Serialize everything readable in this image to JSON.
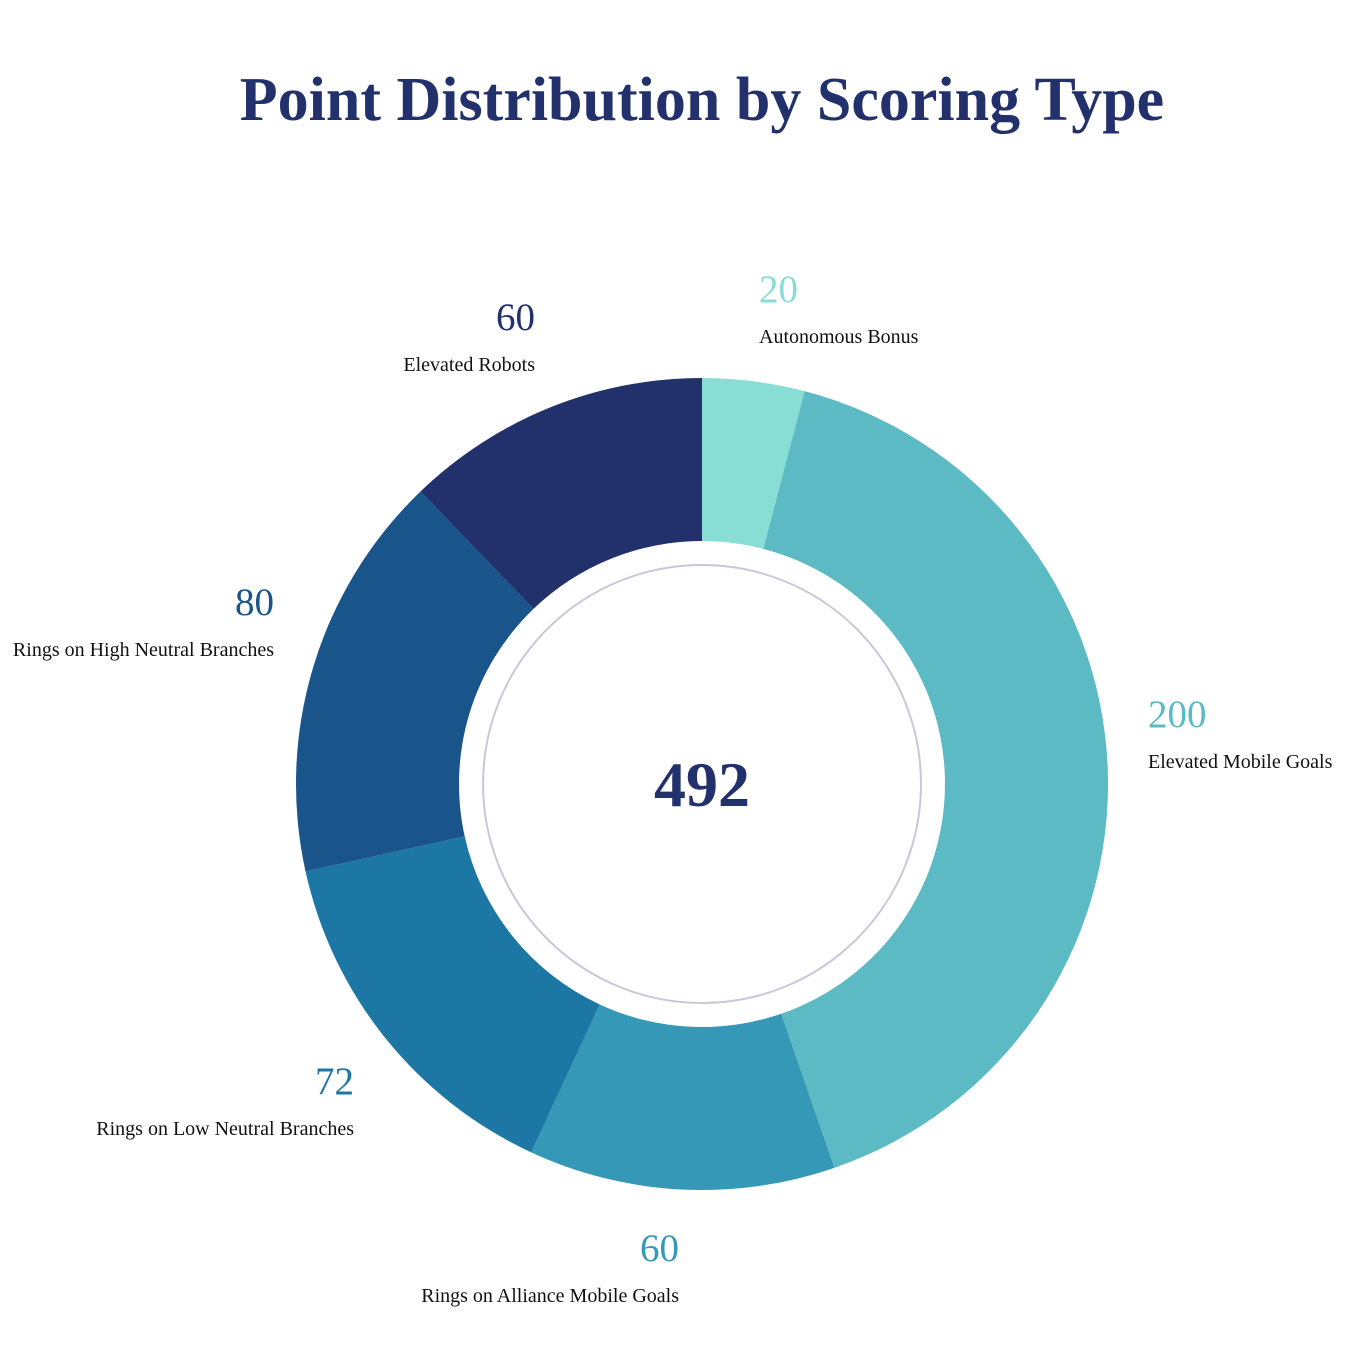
{
  "chart_data": {
    "type": "pie",
    "title": "Point Distribution by Scoring Type",
    "total": "492",
    "slices": [
      {
        "label": "Autonomous Bonus",
        "value": 20,
        "color": "#88ded4"
      },
      {
        "label": "Elevated Mobile Goals",
        "value": 200,
        "color": "#5bbac4"
      },
      {
        "label": "Rings on Alliance Mobile Goals",
        "value": 60,
        "color": "#3598b7"
      },
      {
        "label": "Rings on Low Neutral Branches",
        "value": 72,
        "color": "#1d77a5"
      },
      {
        "label": "Rings on High Neutral Branches",
        "value": 80,
        "color": "#19558a"
      },
      {
        "label": "Elevated Robots",
        "value": 60,
        "color": "#22316c"
      }
    ],
    "center_color": "#22316c",
    "inner_ring_color": "#c8c8d8"
  }
}
